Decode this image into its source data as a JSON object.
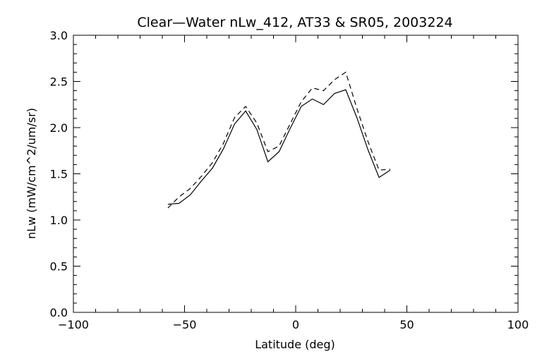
{
  "chart_data": {
    "type": "line",
    "title": "Clear—Water nLw_412, AT33 & SR05, 2003224",
    "xlabel": "Latitude (deg)",
    "ylabel": "nLw (mW/cm^2/um/sr)",
    "xlim": [
      -100,
      100
    ],
    "ylim": [
      0.0,
      3.0
    ],
    "x_ticks": [
      "−100",
      "−50",
      "0",
      "50",
      "100"
    ],
    "y_ticks": [
      "0.0",
      "0.5",
      "1.0",
      "1.5",
      "2.0",
      "2.5",
      "3.0"
    ],
    "grid": false,
    "series": [
      {
        "style": "solid",
        "x": [
          -57.5,
          -52.5,
          -47.5,
          -42.5,
          -37.5,
          -32.5,
          -27.5,
          -22.5,
          -17.5,
          -12.5,
          -7.5,
          -2.5,
          2.5,
          7.5,
          12.5,
          17.5,
          22.5,
          27.5,
          32.5,
          37.5,
          42.5
        ],
        "y": [
          1.17,
          1.18,
          1.27,
          1.42,
          1.56,
          1.77,
          2.04,
          2.18,
          1.98,
          1.63,
          1.74,
          1.99,
          2.23,
          2.31,
          2.25,
          2.37,
          2.41,
          2.11,
          1.76,
          1.46,
          1.54
        ]
      },
      {
        "style": "dashed",
        "x": [
          -57.5,
          -52.5,
          -47.5,
          -42.5,
          -37.5,
          -32.5,
          -27.5,
          -22.5,
          -17.5,
          -12.5,
          -7.5,
          -2.5,
          2.5,
          7.5,
          12.5,
          17.5,
          22.5,
          27.5,
          32.5,
          37.5,
          42.5
        ],
        "y": [
          1.13,
          1.25,
          1.34,
          1.47,
          1.62,
          1.83,
          2.11,
          2.23,
          2.05,
          1.74,
          1.8,
          2.04,
          2.28,
          2.43,
          2.4,
          2.52,
          2.6,
          2.21,
          1.85,
          1.54,
          1.55
        ]
      }
    ]
  }
}
